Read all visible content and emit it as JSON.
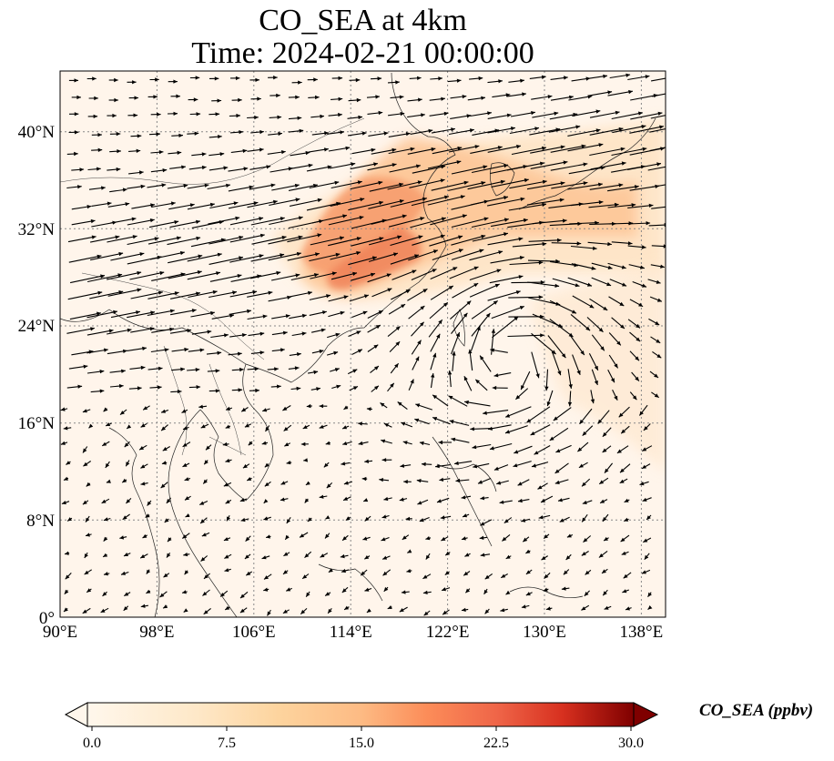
{
  "title": {
    "line1": "CO_SEA at 4km",
    "line2": "Time: 2024-02-21 00:00:00"
  },
  "map": {
    "lon_range": [
      90,
      140
    ],
    "lat_range": [
      0,
      45
    ],
    "lon_ticks": [
      90,
      98,
      106,
      114,
      122,
      130,
      138
    ],
    "lat_ticks": [
      0,
      8,
      16,
      24,
      32,
      40
    ],
    "lon_tick_labels": [
      "90°E",
      "98°E",
      "106°E",
      "114°E",
      "122°E",
      "130°E",
      "138°E"
    ],
    "lat_tick_labels": [
      "0°",
      "8°N",
      "16°N",
      "24°N",
      "32°N",
      "40°N"
    ],
    "gridlines": "dotted",
    "features": [
      "coastlines",
      "country-borders",
      "wind-vectors"
    ],
    "cyclone_center": {
      "lon": 127,
      "lat": 22
    }
  },
  "colorbar": {
    "label": "CO_SEA (ppbv)",
    "min": 0.0,
    "max": 30.0,
    "ticks": [
      "0.0",
      "7.5",
      "15.0",
      "22.5",
      "30.0"
    ],
    "colormap": "OrRd",
    "extend": "both"
  },
  "colors": {
    "background": "#fff5eb",
    "low": "#fdd7a6",
    "mid": "#fc8d59",
    "high": "#d7301f",
    "max": "#7f0000"
  }
}
